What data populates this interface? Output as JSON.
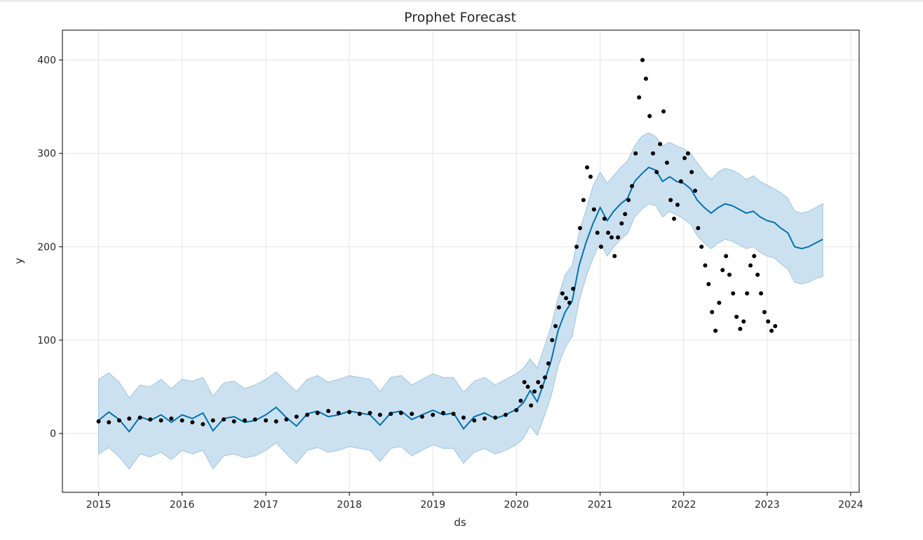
{
  "chart_data": {
    "type": "line",
    "title": "Prophet Forecast",
    "xlabel": "ds",
    "ylabel": "y",
    "xlim": [
      "2014-07-27",
      "2024-02-07"
    ],
    "ylim": [
      -63,
      432
    ],
    "grid": true,
    "x_ticks": [
      "2015",
      "2016",
      "2017",
      "2018",
      "2019",
      "2020",
      "2021",
      "2022",
      "2023",
      "2024"
    ],
    "y_ticks": [
      0,
      100,
      200,
      300,
      400
    ],
    "colors": {
      "forecast_line": "#0072b2",
      "uncertainty_band": "#cce1f0",
      "band_edge": "#9ec4e0",
      "observed_points": "#000000",
      "grid": "#e5e5e5"
    },
    "series": [
      {
        "kind": "line",
        "x": [
          "2015-01-01",
          "2015-02-15",
          "2015-04-01",
          "2015-05-15",
          "2015-07-01",
          "2015-08-15",
          "2015-10-01",
          "2015-11-15",
          "2016-01-01",
          "2016-02-15",
          "2016-04-01",
          "2016-05-15",
          "2016-07-01",
          "2016-08-15",
          "2016-10-01",
          "2016-11-15",
          "2017-01-01",
          "2017-02-15",
          "2017-04-01",
          "2017-05-15",
          "2017-07-01",
          "2017-08-15",
          "2017-10-01",
          "2017-11-15",
          "2018-01-01",
          "2018-02-15",
          "2018-04-01",
          "2018-05-15",
          "2018-07-01",
          "2018-08-15",
          "2018-10-01",
          "2018-11-15",
          "2019-01-01",
          "2019-02-15",
          "2019-04-01",
          "2019-05-15",
          "2019-07-01",
          "2019-08-15",
          "2019-10-01",
          "2019-11-15",
          "2020-01-01",
          "2020-02-01",
          "2020-03-01",
          "2020-04-01",
          "2020-05-01",
          "2020-06-01",
          "2020-07-01",
          "2020-08-01",
          "2020-09-01",
          "2020-10-01",
          "2020-11-01",
          "2020-12-01",
          "2021-01-01",
          "2021-02-01",
          "2021-03-01",
          "2021-04-01",
          "2021-05-01",
          "2021-06-01",
          "2021-07-01",
          "2021-08-01",
          "2021-09-01",
          "2021-10-01",
          "2021-11-01",
          "2021-12-01",
          "2022-01-01",
          "2022-02-01",
          "2022-03-01",
          "2022-04-01",
          "2022-05-01",
          "2022-06-01",
          "2022-07-01",
          "2022-08-01",
          "2022-09-01",
          "2022-10-01",
          "2022-11-01",
          "2022-12-01",
          "2023-01-01",
          "2023-02-01",
          "2023-03-01",
          "2023-04-01",
          "2023-05-01",
          "2023-06-01",
          "2023-07-01",
          "2023-08-01",
          "2023-09-01"
        ],
        "y": [
          14,
          23,
          15,
          2,
          18,
          14,
          20,
          12,
          20,
          16,
          22,
          3,
          16,
          18,
          12,
          14,
          20,
          28,
          17,
          8,
          21,
          24,
          18,
          20,
          24,
          22,
          20,
          9,
          22,
          24,
          15,
          20,
          25,
          20,
          22,
          5,
          18,
          22,
          16,
          20,
          26,
          33,
          46,
          34,
          55,
          78,
          110,
          130,
          142,
          180,
          205,
          225,
          242,
          228,
          238,
          246,
          252,
          270,
          278,
          285,
          282,
          270,
          275,
          270,
          268,
          262,
          250,
          242,
          236,
          242,
          246,
          244,
          240,
          236,
          238,
          232,
          228,
          226,
          220,
          215,
          200,
          198,
          200,
          204,
          208
        ]
      },
      {
        "kind": "band",
        "x": [
          "2015-01-01",
          "2015-02-15",
          "2015-04-01",
          "2015-05-15",
          "2015-07-01",
          "2015-08-15",
          "2015-10-01",
          "2015-11-15",
          "2016-01-01",
          "2016-02-15",
          "2016-04-01",
          "2016-05-15",
          "2016-07-01",
          "2016-08-15",
          "2016-10-01",
          "2016-11-15",
          "2017-01-01",
          "2017-02-15",
          "2017-04-01",
          "2017-05-15",
          "2017-07-01",
          "2017-08-15",
          "2017-10-01",
          "2017-11-15",
          "2018-01-01",
          "2018-02-15",
          "2018-04-01",
          "2018-05-15",
          "2018-07-01",
          "2018-08-15",
          "2018-10-01",
          "2018-11-15",
          "2019-01-01",
          "2019-02-15",
          "2019-04-01",
          "2019-05-15",
          "2019-07-01",
          "2019-08-15",
          "2019-10-01",
          "2019-11-15",
          "2020-01-01",
          "2020-02-01",
          "2020-03-01",
          "2020-04-01",
          "2020-05-01",
          "2020-06-01",
          "2020-07-01",
          "2020-08-01",
          "2020-09-01",
          "2020-10-01",
          "2020-11-01",
          "2020-12-01",
          "2021-01-01",
          "2021-02-01",
          "2021-03-01",
          "2021-04-01",
          "2021-05-01",
          "2021-06-01",
          "2021-07-01",
          "2021-08-01",
          "2021-09-01",
          "2021-10-01",
          "2021-11-01",
          "2021-12-01",
          "2022-01-01",
          "2022-02-01",
          "2022-03-01",
          "2022-04-01",
          "2022-05-01",
          "2022-06-01",
          "2022-07-01",
          "2022-08-01",
          "2022-09-01",
          "2022-10-01",
          "2022-11-01",
          "2022-12-01",
          "2023-01-01",
          "2023-02-01",
          "2023-03-01",
          "2023-04-01",
          "2023-05-01",
          "2023-06-01",
          "2023-07-01",
          "2023-08-01",
          "2023-09-01"
        ],
        "upper": [
          58,
          65,
          55,
          38,
          52,
          50,
          58,
          48,
          58,
          56,
          60,
          40,
          54,
          56,
          48,
          52,
          58,
          66,
          55,
          45,
          58,
          62,
          55,
          58,
          62,
          60,
          58,
          45,
          60,
          62,
          52,
          58,
          64,
          60,
          60,
          44,
          56,
          60,
          52,
          58,
          64,
          70,
          80,
          70,
          92,
          115,
          145,
          170,
          180,
          215,
          240,
          265,
          280,
          268,
          276,
          285,
          292,
          308,
          318,
          322,
          318,
          308,
          312,
          308,
          305,
          300,
          290,
          280,
          272,
          280,
          284,
          282,
          278,
          272,
          276,
          270,
          266,
          262,
          258,
          252,
          238,
          236,
          238,
          242,
          246
        ],
        "lower": [
          -22,
          -15,
          -25,
          -38,
          -22,
          -25,
          -20,
          -28,
          -18,
          -22,
          -18,
          -38,
          -24,
          -22,
          -26,
          -24,
          -18,
          -10,
          -22,
          -32,
          -18,
          -15,
          -20,
          -18,
          -14,
          -16,
          -18,
          -30,
          -16,
          -14,
          -24,
          -18,
          -12,
          -16,
          -16,
          -32,
          -20,
          -16,
          -22,
          -18,
          -12,
          -5,
          8,
          -2,
          18,
          40,
          72,
          92,
          104,
          142,
          168,
          188,
          204,
          190,
          200,
          208,
          214,
          232,
          240,
          246,
          244,
          232,
          238,
          234,
          230,
          224,
          212,
          204,
          198,
          204,
          208,
          206,
          202,
          198,
          200,
          194,
          190,
          188,
          182,
          176,
          162,
          160,
          162,
          166,
          168
        ]
      },
      {
        "kind": "scatter",
        "x": [
          "2015-01-01",
          "2015-02-15",
          "2015-04-01",
          "2015-05-15",
          "2015-07-01",
          "2015-08-15",
          "2015-10-01",
          "2015-11-15",
          "2016-01-01",
          "2016-02-15",
          "2016-04-01",
          "2016-05-15",
          "2016-07-01",
          "2016-08-15",
          "2016-10-01",
          "2016-11-15",
          "2017-01-01",
          "2017-02-15",
          "2017-04-01",
          "2017-05-15",
          "2017-07-01",
          "2017-08-15",
          "2017-10-01",
          "2017-11-15",
          "2018-01-01",
          "2018-02-15",
          "2018-04-01",
          "2018-05-15",
          "2018-07-01",
          "2018-08-15",
          "2018-10-01",
          "2018-11-15",
          "2019-01-01",
          "2019-02-15",
          "2019-04-01",
          "2019-05-15",
          "2019-07-01",
          "2019-08-15",
          "2019-10-01",
          "2019-11-15",
          "2020-01-01",
          "2020-01-20",
          "2020-02-05",
          "2020-02-20",
          "2020-03-05",
          "2020-03-20",
          "2020-04-05",
          "2020-04-20",
          "2020-05-05",
          "2020-05-20",
          "2020-06-05",
          "2020-06-20",
          "2020-07-05",
          "2020-07-20",
          "2020-08-05",
          "2020-08-20",
          "2020-09-05",
          "2020-09-20",
          "2020-10-05",
          "2020-10-20",
          "2020-11-05",
          "2020-11-20",
          "2020-12-05",
          "2020-12-20",
          "2021-01-05",
          "2021-01-20",
          "2021-02-05",
          "2021-02-20",
          "2021-03-05",
          "2021-03-20",
          "2021-04-05",
          "2021-04-20",
          "2021-05-05",
          "2021-05-20",
          "2021-06-05",
          "2021-06-20",
          "2021-07-05",
          "2021-07-20",
          "2021-08-05",
          "2021-08-20",
          "2021-09-05",
          "2021-09-20",
          "2021-10-05",
          "2021-10-20",
          "2021-11-05",
          "2021-11-20",
          "2021-12-05",
          "2021-12-20",
          "2022-01-05",
          "2022-01-20",
          "2022-02-05",
          "2022-02-20",
          "2022-03-05",
          "2022-03-20",
          "2022-04-05",
          "2022-04-20",
          "2022-05-05",
          "2022-05-20",
          "2022-06-05",
          "2022-06-20",
          "2022-07-05",
          "2022-07-20",
          "2022-08-05",
          "2022-08-20",
          "2022-09-05",
          "2022-09-20",
          "2022-10-05",
          "2022-10-20",
          "2022-11-05",
          "2022-11-20",
          "2022-12-05",
          "2022-12-20",
          "2023-01-05",
          "2023-01-20",
          "2023-02-05"
        ],
        "y": [
          13,
          12,
          14,
          16,
          17,
          15,
          14,
          16,
          14,
          12,
          10,
          14,
          15,
          13,
          14,
          15,
          14,
          13,
          15,
          18,
          20,
          22,
          24,
          22,
          23,
          21,
          22,
          20,
          21,
          22,
          21,
          18,
          20,
          22,
          21,
          17,
          14,
          16,
          17,
          20,
          25,
          35,
          55,
          50,
          30,
          45,
          55,
          50,
          60,
          75,
          100,
          115,
          135,
          150,
          145,
          140,
          155,
          200,
          220,
          250,
          285,
          275,
          240,
          215,
          200,
          230,
          215,
          210,
          190,
          210,
          225,
          235,
          250,
          265,
          300,
          360,
          400,
          380,
          340,
          300,
          280,
          310,
          345,
          290,
          250,
          230,
          245,
          270,
          295,
          300,
          280,
          260,
          220,
          200,
          180,
          160,
          130,
          110,
          140,
          175,
          190,
          170,
          150,
          125,
          112,
          120,
          150,
          180,
          190,
          170,
          150,
          130,
          120,
          110,
          115
        ]
      }
    ]
  }
}
